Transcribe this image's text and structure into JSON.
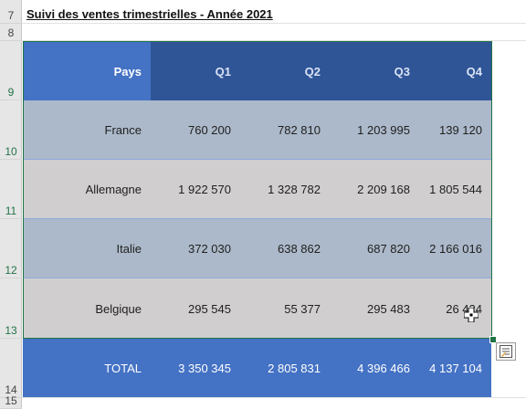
{
  "title": "Suivi des ventes trimestrielles - Année 2021",
  "row_numbers": [
    "7",
    "8",
    "9",
    "10",
    "11",
    "12",
    "13",
    "14",
    "15"
  ],
  "table": {
    "headers": [
      "Pays",
      "Q1",
      "Q2",
      "Q3",
      "Q4"
    ],
    "rows": [
      [
        "France",
        "760 200",
        "782 810",
        "1 203 995",
        "139 120"
      ],
      [
        "Allemagne",
        "1 922 570",
        "1 328 782",
        "2 209 168",
        "1 805 544"
      ],
      [
        "Italie",
        "372 030",
        "638 862",
        "687 820",
        "2 166 016"
      ],
      [
        "Belgique",
        "295 545",
        "55 377",
        "295 483",
        "26 424"
      ]
    ],
    "total": [
      "TOTAL",
      "3 350 345",
      "2 805 831",
      "4 396 466",
      "4 137 104"
    ]
  },
  "colors": {
    "header_pays": "#4472c4",
    "header_quarters": "#2f5597",
    "band_a": "#acb9ca",
    "band_b": "#d0cece",
    "total": "#4472c4",
    "selection": "#217346"
  },
  "icons": [
    "quick-analysis-icon",
    "cell-cross-cursor-icon"
  ]
}
